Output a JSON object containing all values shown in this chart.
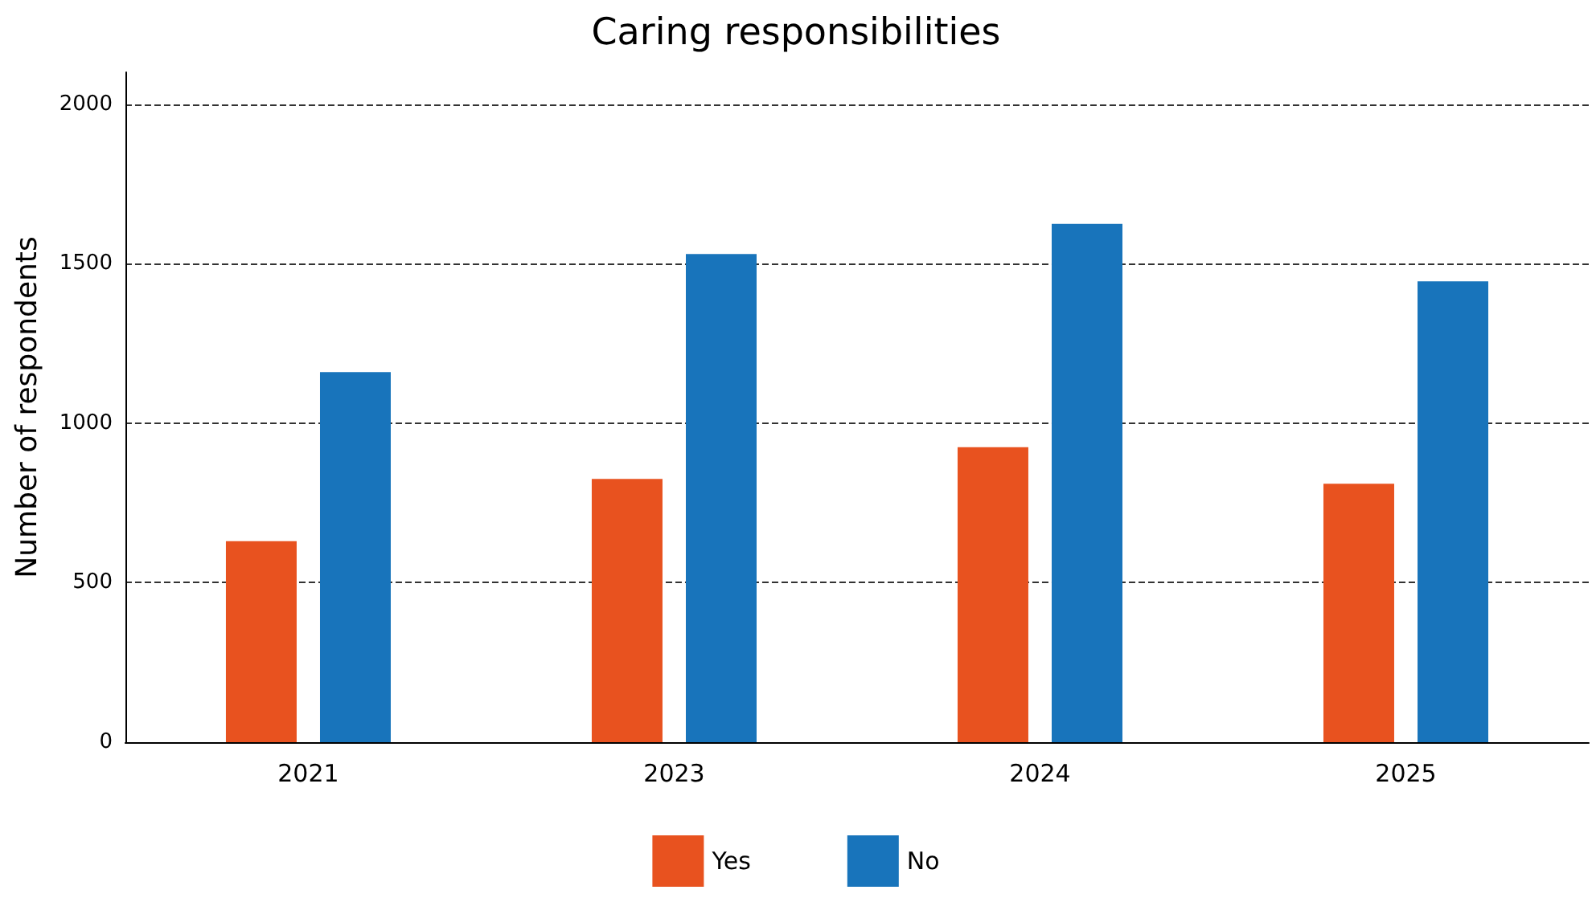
{
  "chart_data": {
    "type": "bar",
    "title": "Caring responsibilities",
    "ylabel": "Number of respondents",
    "categories": [
      "2021",
      "2023",
      "2024",
      "2025"
    ],
    "series": [
      {
        "name": "Yes",
        "color": "#e8521f",
        "values": [
          630,
          825,
          925,
          810
        ]
      },
      {
        "name": "No",
        "color": "#1874bb",
        "values": [
          1160,
          1530,
          1625,
          1445
        ]
      }
    ],
    "ylim": [
      0,
      2100
    ],
    "yticks": [
      0,
      500,
      1000,
      1500,
      2000
    ],
    "grid": "y",
    "legend": "bottom"
  }
}
